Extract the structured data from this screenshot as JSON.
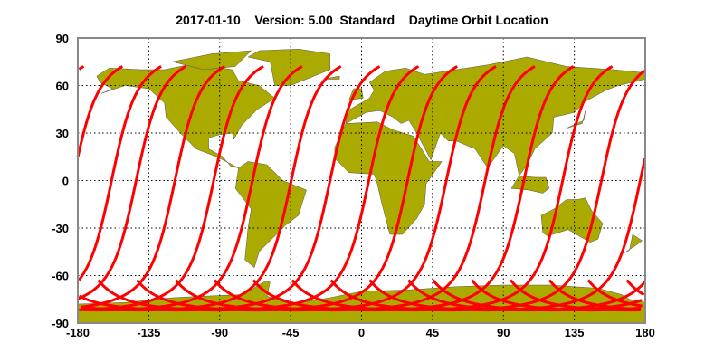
{
  "title": "2017-01-10    Version: 5.00  Standard    Daytime Orbit Location",
  "map": {
    "projection": "equirectangular",
    "lon_range": [
      -180,
      180
    ],
    "lat_range": [
      -90,
      90
    ],
    "x_ticks": [
      "-180",
      "-135",
      "-90",
      "-45",
      "0",
      "45",
      "90",
      "135",
      "180"
    ],
    "y_ticks": [
      "90",
      "60",
      "30",
      "0",
      "-30",
      "-60",
      "-90"
    ],
    "grid": "dotted",
    "land_color": "#aaaa00",
    "orbit_color": "#ff0000",
    "orbit_count": 15
  }
}
